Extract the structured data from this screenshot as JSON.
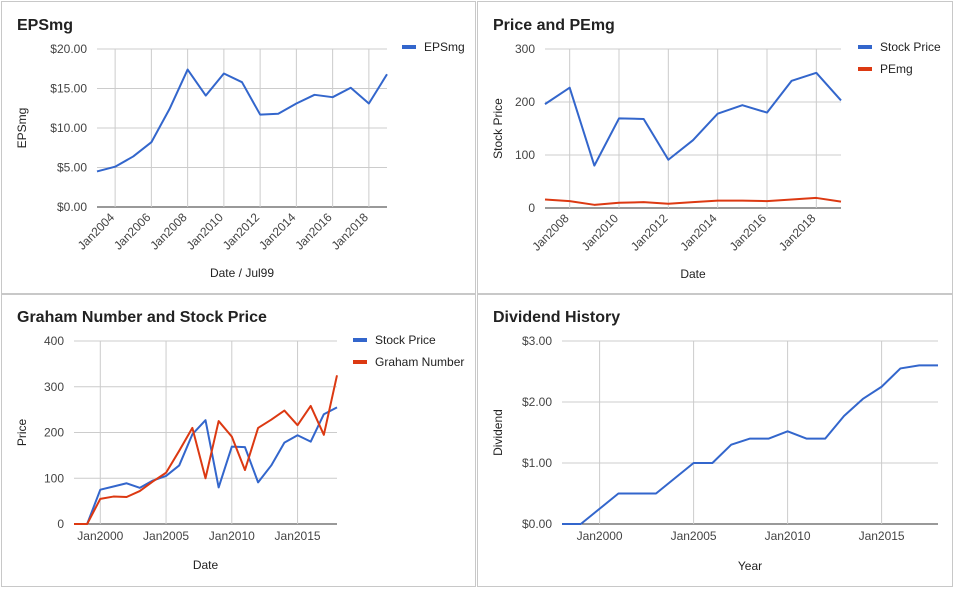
{
  "chart_data": [
    {
      "type": "line",
      "title": "EPSmg",
      "xlabel": "Date / Jul99",
      "ylabel": "EPSmg",
      "x": [
        "2003",
        "2004",
        "2005",
        "2006",
        "2007",
        "2008",
        "2009",
        "2010",
        "2011",
        "2012",
        "2013",
        "2014",
        "2015",
        "2016",
        "2017",
        "2018",
        "2019"
      ],
      "series": [
        {
          "name": "EPSmg",
          "color": "#3366cc",
          "values": [
            4.5,
            5.1,
            6.4,
            8.2,
            12.4,
            17.4,
            14.1,
            16.9,
            15.8,
            11.7,
            11.8,
            13.1,
            14.2,
            13.9,
            15.1,
            13.1,
            16.8
          ]
        }
      ],
      "yticks": [
        "$0.00",
        "$5.00",
        "$10.00",
        "$15.00",
        "$20.00"
      ],
      "ylim": [
        0,
        20
      ],
      "xticks": [
        "Jan2004",
        "Jan2006",
        "Jan2008",
        "Jan2010",
        "Jan2012",
        "Jan2014",
        "Jan2016",
        "Jan2018"
      ],
      "xtick_pos": [
        2004,
        2006,
        2008,
        2010,
        2012,
        2014,
        2016,
        2018
      ],
      "xlim": [
        2003,
        2019
      ],
      "grid": true,
      "legend": "top-right"
    },
    {
      "type": "line",
      "title": "Price and PEmg",
      "xlabel": "Date",
      "ylabel": "Stock Price",
      "x": [
        "2007",
        "2008",
        "2009",
        "2010",
        "2011",
        "2012",
        "2013",
        "2014",
        "2015",
        "2016",
        "2017",
        "2018",
        "2019"
      ],
      "series": [
        {
          "name": "Stock Price",
          "color": "#3366cc",
          "values": [
            196,
            227,
            80,
            169,
            168,
            91,
            128,
            178,
            194,
            180,
            240,
            255,
            203
          ]
        },
        {
          "name": "PEmg",
          "color": "#dc3912",
          "values": [
            16,
            13,
            6,
            10,
            11,
            8,
            11,
            14,
            14,
            13,
            16,
            19,
            12
          ]
        }
      ],
      "yticks": [
        "0",
        "100",
        "200",
        "300"
      ],
      "ylim": [
        0,
        300
      ],
      "xticks": [
        "Jan2008",
        "Jan2010",
        "Jan2012",
        "Jan2014",
        "Jan2016",
        "Jan2018"
      ],
      "xtick_pos": [
        2008,
        2010,
        2012,
        2014,
        2016,
        2018
      ],
      "xlim": [
        2007,
        2019
      ],
      "grid": true,
      "legend": "top-right"
    },
    {
      "type": "line",
      "title": "Graham Number and Stock Price",
      "xlabel": "Date",
      "ylabel": "Price",
      "x": [
        "1998",
        "1999",
        "2000",
        "2001",
        "2002",
        "2003",
        "2004",
        "2005",
        "2006",
        "2007",
        "2008",
        "2009",
        "2010",
        "2011",
        "2012",
        "2013",
        "2014",
        "2015",
        "2016",
        "2017",
        "2018"
      ],
      "series": [
        {
          "name": "Stock Price",
          "color": "#3366cc",
          "values": [
            0,
            0,
            75,
            82,
            89,
            79,
            95,
            105,
            128,
            196,
            227,
            80,
            169,
            168,
            91,
            128,
            178,
            194,
            180,
            240,
            255
          ]
        },
        {
          "name": "Graham Number",
          "color": "#dc3912",
          "values": [
            0,
            0,
            55,
            60,
            59,
            72,
            93,
            112,
            160,
            210,
            100,
            225,
            191,
            118,
            210,
            228,
            248,
            216,
            258,
            195,
            325
          ]
        }
      ],
      "yticks": [
        "0",
        "100",
        "200",
        "300",
        "400"
      ],
      "ylim": [
        0,
        400
      ],
      "xticks": [
        "Jan2000",
        "Jan2005",
        "Jan2010",
        "Jan2015"
      ],
      "xtick_pos": [
        2000,
        2005,
        2010,
        2015
      ],
      "xlim": [
        1998,
        2018
      ],
      "grid": true,
      "legend": "top-right"
    },
    {
      "type": "line",
      "title": "Dividend History",
      "xlabel": "Year",
      "ylabel": "Dividend",
      "x": [
        "1998",
        "1999",
        "2000",
        "2001",
        "2002",
        "2003",
        "2004",
        "2005",
        "2006",
        "2007",
        "2008",
        "2009",
        "2010",
        "2011",
        "2012",
        "2013",
        "2014",
        "2015",
        "2016",
        "2017",
        "2018"
      ],
      "series": [
        {
          "name": "",
          "color": "#3366cc",
          "values": [
            0,
            0,
            0.25,
            0.5,
            0.5,
            0.5,
            0.75,
            1.0,
            1.0,
            1.3,
            1.4,
            1.4,
            1.52,
            1.4,
            1.4,
            1.77,
            2.05,
            2.25,
            2.55,
            2.6,
            2.6
          ]
        }
      ],
      "yticks": [
        "$0.00",
        "$1.00",
        "$2.00",
        "$3.00"
      ],
      "ylim": [
        0,
        3
      ],
      "xticks": [
        "Jan2000",
        "Jan2005",
        "Jan2010",
        "Jan2015"
      ],
      "xtick_pos": [
        2000,
        2005,
        2010,
        2015
      ],
      "xlim": [
        1998,
        2018
      ],
      "grid": true,
      "legend": "none"
    }
  ]
}
